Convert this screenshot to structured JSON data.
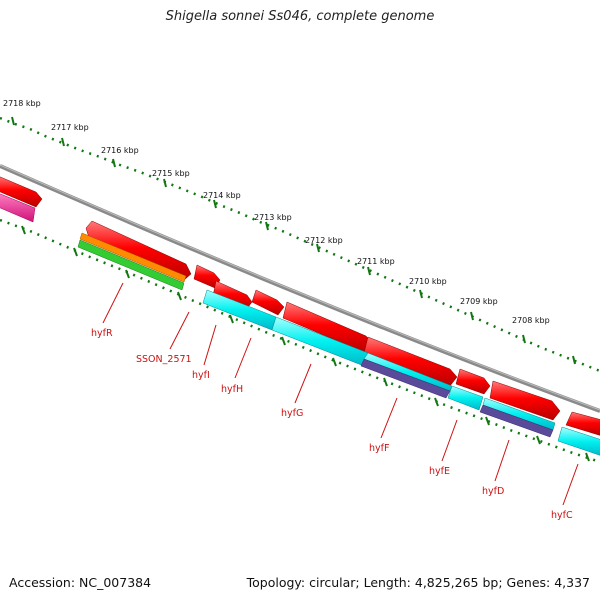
{
  "title": "Shigella sonnei Ss046, complete genome",
  "footer": {
    "accession": "Accession: NC_007384",
    "summary": "Topology: circular; Length: 4,825,265 bp; Genes: 4,337"
  },
  "colors": {
    "backbone": "#8a8a8a",
    "tick": "#117711",
    "cds": "#ff0000",
    "cog_cyan": "#00f0f0",
    "cog_orange": "#ff8c00",
    "cog_green": "#33cc33",
    "cog_purple": "#5a4a9a",
    "cog_magenta": "#ff1493",
    "label": "#cc1111"
  },
  "kbp_labels": [
    "2718 kbp",
    "2717 kbp",
    "2716 kbp",
    "2715 kbp",
    "2714 kbp",
    "2713 kbp",
    "2712 kbp",
    "2711 kbp",
    "2710 kbp",
    "2709 kbp",
    "2708 kbp"
  ],
  "gene_labels": [
    "hyfR",
    "SSON_2571",
    "hyfI",
    "hyfH",
    "hyfG",
    "hyfF",
    "hyfE",
    "hyfD",
    "hyfC"
  ]
}
